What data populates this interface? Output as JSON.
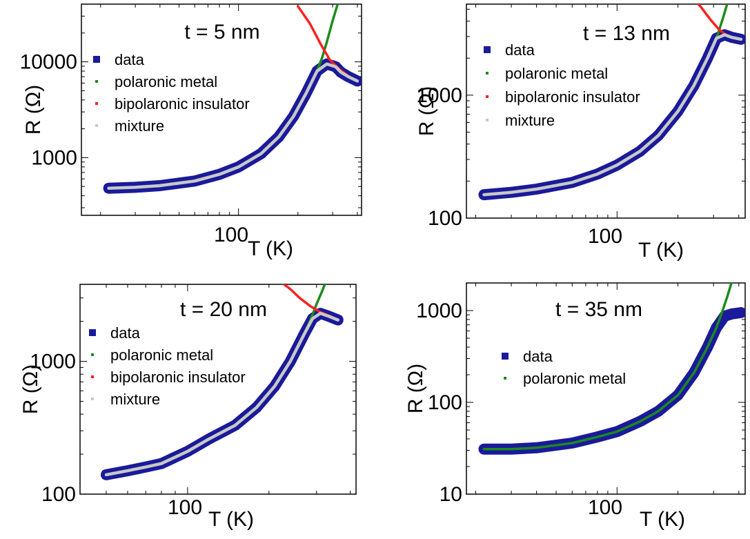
{
  "figure": {
    "colors": {
      "data": "#1a1a9a",
      "polaronic_metal": "#1c8a1c",
      "bipolaronic_insulator": "#ff2020",
      "mixture": "#c8c8c8"
    }
  },
  "chart_data": [
    {
      "type": "line",
      "title": "t = 5 nm",
      "xlabel": "T (K)",
      "ylabel": "R (Ω)",
      "xscale": "log",
      "yscale": "log",
      "xlim": [
        16,
        420
      ],
      "ylim": [
        250,
        40000
      ],
      "xticks": [
        {
          "value": 100,
          "label": "100"
        }
      ],
      "yticks": [
        {
          "value": 1000,
          "label": "1000"
        },
        {
          "value": 10000,
          "label": "10000"
        }
      ],
      "legend": {
        "position": "top-left",
        "entries": [
          "data",
          "polaronic metal",
          "bipolaronic insulator",
          "mixture"
        ]
      },
      "series": [
        {
          "name": "data",
          "style": "thick",
          "color": "#1a1a9a",
          "x": [
            22,
            30,
            40,
            60,
            80,
            100,
            130,
            160,
            190,
            220,
            250,
            280,
            310,
            330,
            360,
            400
          ],
          "y": [
            480,
            490,
            510,
            570,
            670,
            800,
            1100,
            1650,
            2700,
            4700,
            8000,
            9500,
            8900,
            7800,
            7000,
            6300
          ]
        },
        {
          "name": "polaronic metal",
          "style": "line",
          "color": "#1c8a1c",
          "x": [
            250,
            265,
            280,
            300,
            320
          ],
          "y": [
            8000,
            11000,
            16000,
            27000,
            42000
          ]
        },
        {
          "name": "bipolaronic insulator",
          "style": "line",
          "color": "#ff2020",
          "x": [
            200,
            230,
            260,
            290,
            320,
            360,
            400
          ],
          "y": [
            38000,
            25000,
            15500,
            10500,
            8600,
            7100,
            6300
          ]
        },
        {
          "name": "mixture",
          "style": "thin",
          "color": "#c8c8c8",
          "x": [
            22,
            30,
            40,
            60,
            80,
            100,
            130,
            160,
            190,
            220,
            250,
            280,
            310,
            330,
            360,
            400
          ],
          "y": [
            480,
            490,
            510,
            570,
            670,
            800,
            1100,
            1650,
            2700,
            4700,
            8000,
            9500,
            8900,
            7800,
            7000,
            6300
          ]
        }
      ]
    },
    {
      "type": "line",
      "title": "t = 13 nm",
      "xlabel": "T (K)",
      "ylabel": "R (Ω)",
      "xscale": "log",
      "yscale": "log",
      "xlim": [
        18,
        430
      ],
      "ylim": [
        100,
        5500
      ],
      "xticks": [
        {
          "value": 100,
          "label": "100"
        }
      ],
      "yticks": [
        {
          "value": 100,
          "label": "100"
        },
        {
          "value": 1000,
          "label": "1000"
        }
      ],
      "legend": {
        "position": "top-left",
        "entries": [
          "data",
          "polaronic metal",
          "bipolaronic insulator",
          "mixture"
        ]
      },
      "series": [
        {
          "name": "data",
          "style": "thick",
          "color": "#1a1a9a",
          "x": [
            22,
            30,
            40,
            60,
            80,
            100,
            130,
            160,
            200,
            240,
            280,
            310,
            340,
            370,
            410
          ],
          "y": [
            155,
            162,
            172,
            195,
            228,
            270,
            350,
            470,
            740,
            1200,
            2000,
            2900,
            3100,
            2950,
            2850
          ]
        },
        {
          "name": "polaronic metal",
          "style": "line",
          "color": "#1c8a1c",
          "x": [
            310,
            320,
            335,
            350,
            365
          ],
          "y": [
            2900,
            3400,
            4300,
            5500,
            7000
          ]
        },
        {
          "name": "bipolaronic insulator",
          "style": "line",
          "color": "#ff2020",
          "x": [
            230,
            260,
            290,
            320,
            350,
            380,
            410
          ],
          "y": [
            6500,
            5200,
            4100,
            3400,
            3050,
            2900,
            2850
          ]
        },
        {
          "name": "mixture",
          "style": "thin",
          "color": "#c8c8c8",
          "x": [
            22,
            30,
            40,
            60,
            80,
            100,
            130,
            160,
            200,
            240,
            280,
            310,
            340,
            370,
            410
          ],
          "y": [
            155,
            162,
            172,
            195,
            228,
            270,
            350,
            470,
            740,
            1200,
            2000,
            2900,
            3100,
            2950,
            2850
          ]
        }
      ]
    },
    {
      "type": "line",
      "title": "t = 20 nm",
      "xlabel": "T (K)",
      "ylabel": "R (Ω)",
      "xscale": "log",
      "yscale": "log",
      "xlim": [
        40,
        420
      ],
      "ylim": [
        100,
        3800
      ],
      "xticks": [
        {
          "value": 100,
          "label": "100"
        }
      ],
      "yticks": [
        {
          "value": 100,
          "label": "100"
        },
        {
          "value": 1000,
          "label": "1000"
        }
      ],
      "legend": {
        "position": "top-left",
        "entries": [
          "data",
          "polaronic metal",
          "bipolaronic insulator",
          "mixture"
        ]
      },
      "series": [
        {
          "name": "data",
          "style": "thick",
          "color": "#1a1a9a",
          "x": [
            50,
            60,
            70,
            80,
            100,
            120,
            150,
            180,
            210,
            240,
            270,
            290,
            310,
            330,
            360
          ],
          "y": [
            140,
            150,
            160,
            170,
            210,
            260,
            330,
            450,
            650,
            1000,
            1600,
            2100,
            2300,
            2200,
            2050
          ]
        },
        {
          "name": "polaronic metal",
          "style": "line",
          "color": "#1c8a1c",
          "x": [
            270,
            285,
            300,
            315,
            325
          ],
          "y": [
            1600,
            2050,
            2700,
            3400,
            4000
          ]
        },
        {
          "name": "bipolaronic insulator",
          "style": "line",
          "color": "#ff2020",
          "x": [
            220,
            240,
            260,
            285,
            310,
            335,
            360
          ],
          "y": [
            4000,
            3500,
            3000,
            2600,
            2350,
            2200,
            2050
          ]
        },
        {
          "name": "mixture",
          "style": "thin",
          "color": "#c8c8c8",
          "x": [
            50,
            60,
            70,
            80,
            100,
            120,
            150,
            180,
            210,
            240,
            270,
            290,
            310,
            330,
            360
          ],
          "y": [
            140,
            150,
            160,
            170,
            210,
            260,
            330,
            450,
            650,
            1000,
            1600,
            2100,
            2300,
            2200,
            2050
          ]
        }
      ]
    },
    {
      "type": "line",
      "title": "t = 35 nm",
      "xlabel": "T (K)",
      "ylabel": "R (Ω)",
      "xscale": "log",
      "yscale": "log",
      "xlim": [
        18,
        430
      ],
      "ylim": [
        10,
        2000
      ],
      "xticks": [
        {
          "value": 100,
          "label": "100"
        }
      ],
      "yticks": [
        {
          "value": 10,
          "label": "10"
        },
        {
          "value": 100,
          "label": "100"
        },
        {
          "value": 1000,
          "label": "1000"
        }
      ],
      "legend": {
        "position": "center-left",
        "entries": [
          "data",
          "polaronic metal"
        ]
      },
      "series": [
        {
          "name": "data",
          "style": "thick",
          "color": "#1a1a9a",
          "x": [
            22,
            30,
            40,
            60,
            80,
            100,
            130,
            160,
            200,
            240,
            280,
            310,
            340,
            370,
            410
          ],
          "y": [
            31,
            31,
            32,
            36,
            42,
            48,
            62,
            80,
            120,
            210,
            400,
            650,
            870,
            920,
            950
          ]
        },
        {
          "name": "polaronic metal",
          "style": "line",
          "color": "#1c8a1c",
          "x": [
            22,
            30,
            40,
            60,
            80,
            100,
            130,
            160,
            200,
            240,
            280,
            310,
            330,
            350,
            370
          ],
          "y": [
            31,
            31,
            32,
            36,
            42,
            48,
            62,
            80,
            120,
            210,
            400,
            650,
            950,
            1400,
            2100
          ]
        }
      ]
    }
  ]
}
